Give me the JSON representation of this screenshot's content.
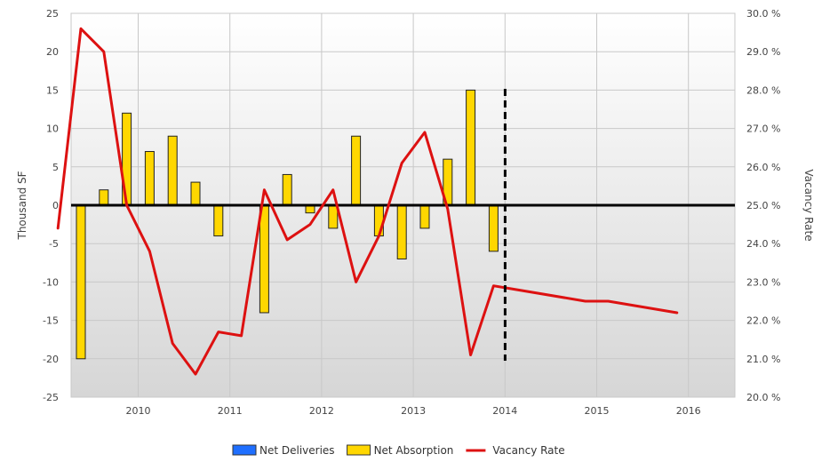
{
  "chart_data": {
    "type": "bar+line",
    "xlabel": "",
    "ylabel_left": "Thousand SF",
    "ylabel_right": "Vacancy Rate",
    "ylim_left": [
      -25,
      25
    ],
    "ylim_right": [
      20,
      30
    ],
    "left_ticks": [
      "25",
      "20",
      "15",
      "10",
      "5",
      "0",
      "-5",
      "-10",
      "-15",
      "-20",
      "-25"
    ],
    "right_ticks": [
      "30.0 %",
      "29.0 %",
      "28.0 %",
      "27.0 %",
      "26.0 %",
      "25.0 %",
      "24.0 %",
      "23.0 %",
      "22.0 %",
      "21.0 %",
      "20.0 %"
    ],
    "x_ticks": [
      "2010",
      "2011",
      "2012",
      "2013",
      "2014",
      "2015",
      "2016"
    ],
    "grid": true,
    "legend_position": "bottom",
    "forecast_divider_at": "2014 Q2",
    "series": [
      {
        "name": "Net Deliveries",
        "kind": "bar",
        "color": "#1f6fff",
        "points": []
      },
      {
        "name": "Net Absorption",
        "kind": "bar",
        "color": "#ffd700",
        "points": [
          {
            "quarter": "2009 Q4",
            "value": -20
          },
          {
            "quarter": "2010 Q1",
            "value": 2
          },
          {
            "quarter": "2010 Q2",
            "value": 12
          },
          {
            "quarter": "2010 Q3",
            "value": 7
          },
          {
            "quarter": "2010 Q4",
            "value": 9
          },
          {
            "quarter": "2011 Q1",
            "value": 3
          },
          {
            "quarter": "2011 Q2",
            "value": -4
          },
          {
            "quarter": "2011 Q4",
            "value": -14
          },
          {
            "quarter": "2012 Q1",
            "value": 4
          },
          {
            "quarter": "2012 Q2",
            "value": -1
          },
          {
            "quarter": "2012 Q3",
            "value": -3
          },
          {
            "quarter": "2012 Q4",
            "value": 9
          },
          {
            "quarter": "2013 Q1",
            "value": -4
          },
          {
            "quarter": "2013 Q2",
            "value": -7
          },
          {
            "quarter": "2013 Q3",
            "value": -3
          },
          {
            "quarter": "2013 Q4",
            "value": 6
          },
          {
            "quarter": "2014 Q1",
            "value": 15
          },
          {
            "quarter": "2014 Q2",
            "value": -6
          }
        ]
      },
      {
        "name": "Vacancy Rate",
        "kind": "line",
        "axis": "right",
        "unit": "%",
        "color": "#dd1111",
        "points": [
          {
            "quarter": "2009 Q3",
            "value": 24.4
          },
          {
            "quarter": "2009 Q4",
            "value": 29.6
          },
          {
            "quarter": "2010 Q1",
            "value": 29.0
          },
          {
            "quarter": "2010 Q2",
            "value": 25.0
          },
          {
            "quarter": "2010 Q3",
            "value": 23.8
          },
          {
            "quarter": "2010 Q4",
            "value": 21.4
          },
          {
            "quarter": "2011 Q1",
            "value": 20.6
          },
          {
            "quarter": "2011 Q2",
            "value": 21.7
          },
          {
            "quarter": "2011 Q3",
            "value": 21.6
          },
          {
            "quarter": "2011 Q4",
            "value": 25.4
          },
          {
            "quarter": "2012 Q1",
            "value": 24.1
          },
          {
            "quarter": "2012 Q2",
            "value": 24.5
          },
          {
            "quarter": "2012 Q3",
            "value": 25.4
          },
          {
            "quarter": "2012 Q4",
            "value": 23.0
          },
          {
            "quarter": "2013 Q1",
            "value": 24.2
          },
          {
            "quarter": "2013 Q2",
            "value": 26.1
          },
          {
            "quarter": "2013 Q3",
            "value": 26.9
          },
          {
            "quarter": "2013 Q4",
            "value": 24.9
          },
          {
            "quarter": "2014 Q1",
            "value": 21.1
          },
          {
            "quarter": "2014 Q2",
            "value": 22.9
          },
          {
            "quarter": "2014 Q3",
            "value": 22.8
          },
          {
            "quarter": "2015 Q2",
            "value": 22.5
          },
          {
            "quarter": "2015 Q3",
            "value": 22.5
          },
          {
            "quarter": "2016 Q2",
            "value": 22.2
          }
        ]
      }
    ]
  }
}
